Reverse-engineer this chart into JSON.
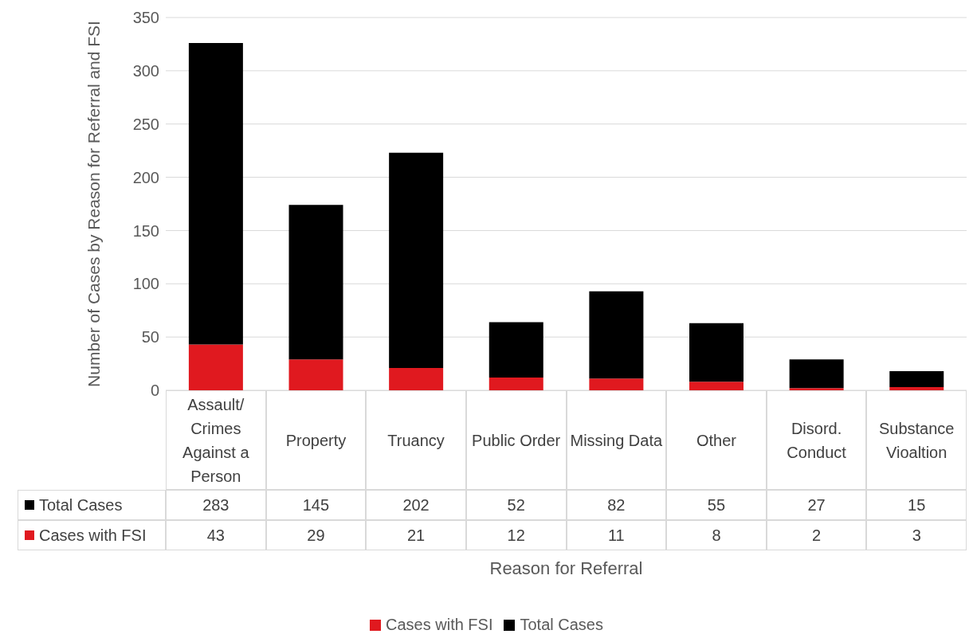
{
  "chart_data": {
    "type": "bar",
    "stacked": true,
    "xlabel": "Reason for Referral",
    "ylabel": "Number of Cases by Reason for Referral and FSI",
    "categories": [
      "Assault/ Crimes Against a Person",
      "Property",
      "Truancy",
      "Public Order",
      "Missing Data",
      "Other",
      "Disord. Conduct",
      "Substance Vioaltion"
    ],
    "series": [
      {
        "name": "Cases with FSI",
        "color": "#e0191f",
        "values": [
          43,
          29,
          21,
          12,
          11,
          8,
          2,
          3
        ]
      },
      {
        "name": "Total Cases",
        "color": "#000000",
        "values": [
          283,
          145,
          202,
          52,
          82,
          55,
          27,
          15
        ]
      }
    ],
    "ylim": [
      0,
      350
    ],
    "yticks": [
      0,
      50,
      100,
      150,
      200,
      250,
      300,
      350
    ],
    "grid": "y",
    "legend": "bottom",
    "data_labels": true
  }
}
